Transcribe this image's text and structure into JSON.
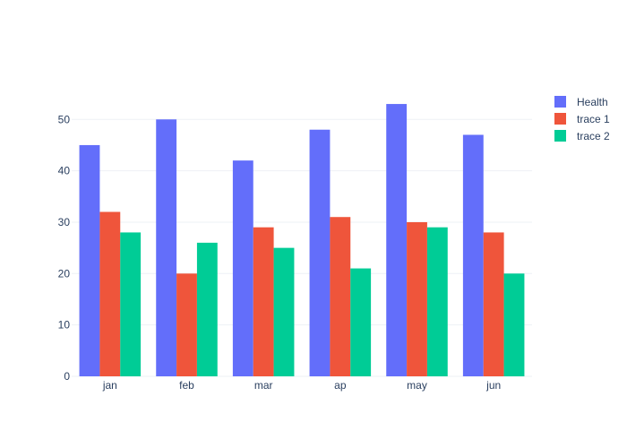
{
  "chart_data": {
    "type": "bar",
    "categories": [
      "jan",
      "feb",
      "mar",
      "ap",
      "may",
      "jun"
    ],
    "series": [
      {
        "name": "Health",
        "values": [
          45,
          50,
          42,
          48,
          53,
          47
        ],
        "color": "#636efa"
      },
      {
        "name": "trace 1",
        "values": [
          32,
          20,
          29,
          31,
          30,
          28
        ],
        "color": "#ef553b"
      },
      {
        "name": "trace 2",
        "values": [
          28,
          26,
          25,
          21,
          29,
          20
        ],
        "color": "#00cc96"
      }
    ],
    "ylim": [
      0,
      55.8
    ],
    "yticks": [
      0,
      10,
      20,
      30,
      40,
      50
    ],
    "grid": true,
    "legend": "top-right",
    "barmode": "group",
    "colors": {
      "grid": "#eef1f6",
      "text": "#2a3f5f",
      "background": "#ffffff"
    }
  }
}
